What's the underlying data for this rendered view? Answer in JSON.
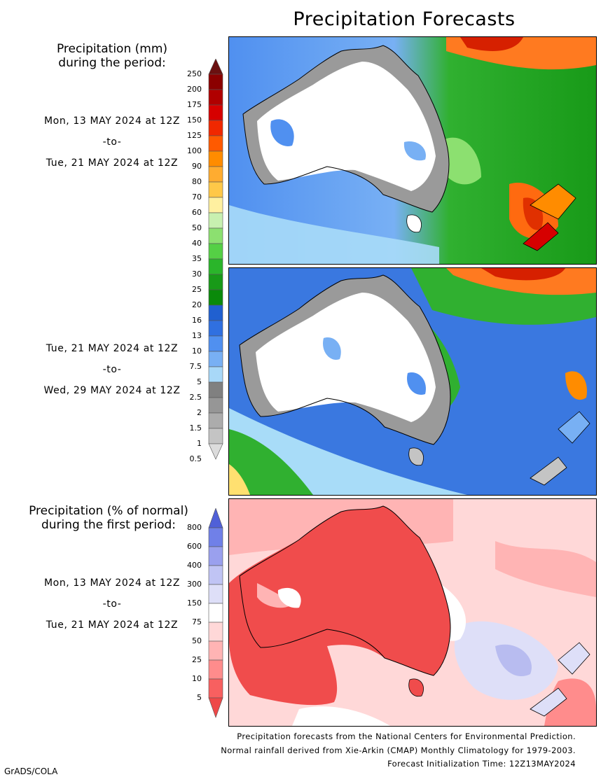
{
  "title": "Precipitation Forecasts",
  "amount_legend": {
    "heading_line1": "Precipitation (mm)",
    "heading_line2": "during the period:",
    "levels": [
      "250",
      "200",
      "175",
      "150",
      "125",
      "100",
      "90",
      "80",
      "70",
      "60",
      "50",
      "40",
      "35",
      "30",
      "25",
      "20",
      "16",
      "13",
      "10",
      "7.5",
      "5",
      "2.5",
      "2",
      "1.5",
      "1",
      "0.5"
    ],
    "colors": [
      "#6b1010",
      "#8b0000",
      "#b00000",
      "#d60000",
      "#f02800",
      "#ff5a00",
      "#ff8c00",
      "#ffac30",
      "#ffc848",
      "#fff0a0",
      "#c8f0b0",
      "#8ce070",
      "#55d045",
      "#2ab52a",
      "#189a18",
      "#0a8a0a",
      "#2060d0",
      "#3070e0",
      "#5090f0",
      "#78b0f4",
      "#a8d8f8",
      "#808080",
      "#969696",
      "#acacac",
      "#c4c4c4",
      "#dcdcdc"
    ]
  },
  "percent_legend": {
    "heading_line1": "Precipitation (% of normal)",
    "heading_line2": "during the first period:",
    "levels": [
      "800",
      "600",
      "400",
      "300",
      "150",
      "75",
      "50",
      "25",
      "10",
      "5"
    ],
    "colors": [
      "#5060d8",
      "#7080e8",
      "#9aa0ee",
      "#c0c4f4",
      "#dedff8",
      "#ffffff",
      "#ffd8d8",
      "#ffb4b4",
      "#ff8c8c",
      "#f86060",
      "#ee4848"
    ]
  },
  "period1": {
    "start": "Mon, 13 MAY 2024 at 12Z",
    "sep": "-to-",
    "end": "Tue, 21 MAY 2024 at 12Z"
  },
  "period2": {
    "start": "Tue, 21 MAY 2024 at 12Z",
    "sep": "-to-",
    "end": "Wed, 29 MAY 2024 at 12Z"
  },
  "period3": {
    "start": "Mon, 13 MAY 2024 at 12Z",
    "sep": "-to-",
    "end": "Tue, 21 MAY 2024 at 12Z"
  },
  "footer": {
    "line1": "Precipitation forecasts from the National Centers for Environmental Prediction.",
    "line2": "Normal rainfall derived from Xie-Arkin (CMAP) Monthly Climatology for 1979-2003.",
    "line3": "Forecast Initialization Time: 12Z13MAY2024"
  },
  "credit": "GrADS/COLA",
  "map_colors": {
    "land_dry": "#ffffff",
    "ocean_wet": "#a8dcf8",
    "ocean_blue": "#3a78e0",
    "green": "#30b030",
    "heavy": "#ff5a10",
    "gray": "#9a9a9a",
    "pct_red": "#f04c4c",
    "pct_pink": "#ffb8b8",
    "pct_blue": "#b8bcf0"
  }
}
